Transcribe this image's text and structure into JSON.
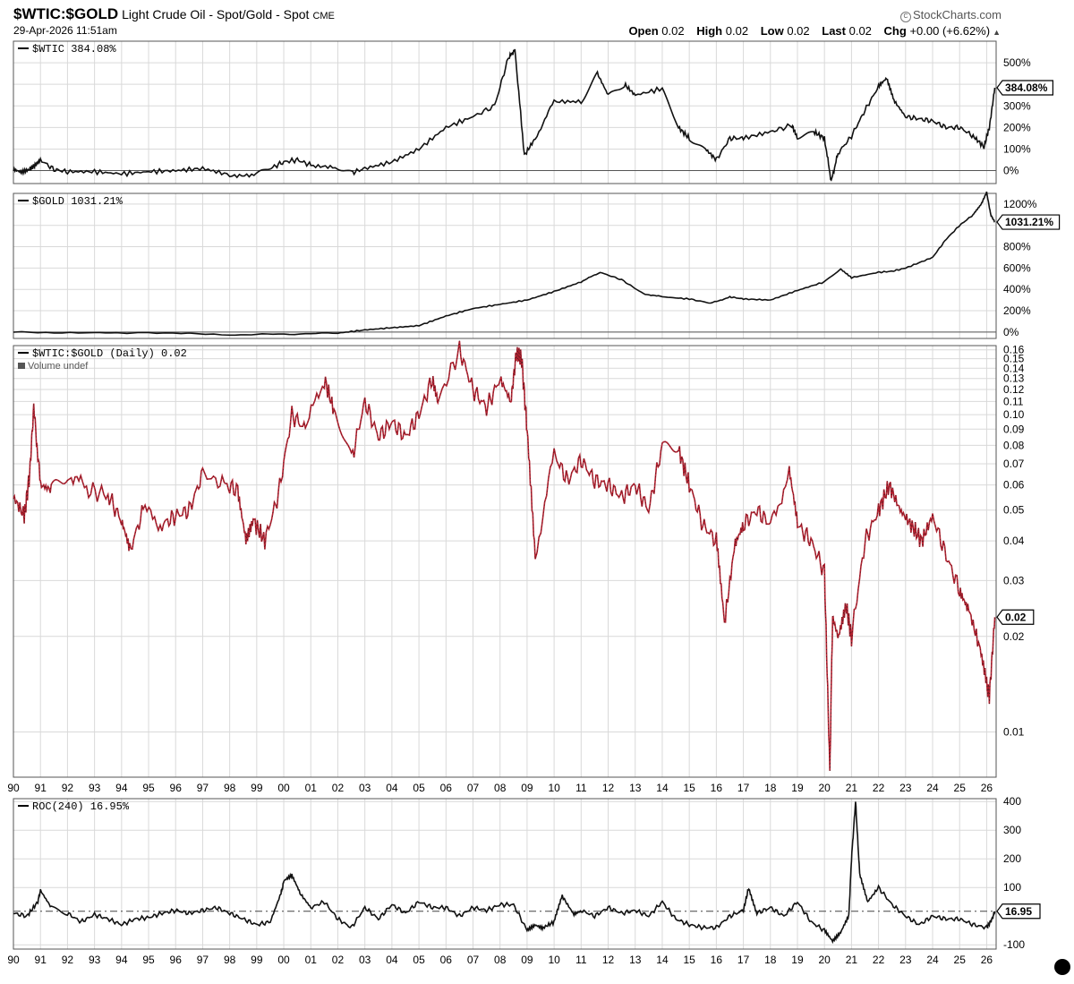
{
  "header": {
    "symbol": "$WTIC:$GOLD",
    "description": "Light Crude Oil - Spot/Gold - Spot",
    "exchange": "CME",
    "datetime": "29-Apr-2026 11:51am",
    "brand": "StockCharts.com",
    "ohlc": {
      "open_label": "Open",
      "open": "0.02",
      "high_label": "High",
      "high": "0.02",
      "low_label": "Low",
      "low": "0.02",
      "last_label": "Last",
      "last": "0.02",
      "chg_label": "Chg",
      "chg": "+0.00 (+6.62%)"
    }
  },
  "colors": {
    "line": "#111111",
    "ratio": "#b3202f",
    "grid": "#d9d9d9",
    "frame": "#555555"
  },
  "chart_data": [
    {
      "type": "line",
      "panel": "wtic",
      "legend": "$WTIC 384.08%",
      "last_label": "384.08%",
      "yticks": [
        "500%",
        "400%",
        "300%",
        "200%",
        "100%",
        "0%"
      ],
      "ylim": [
        -60,
        600
      ],
      "x": [
        1990,
        1990.3,
        1990.6,
        1990.8,
        1991.0,
        1991.5,
        1992,
        1993,
        1994,
        1995,
        1996,
        1997,
        1998,
        1998.9,
        1999.5,
        2000,
        2000.5,
        2001,
        2001.9,
        2002.5,
        2003,
        2004,
        2005,
        2006,
        2007,
        2007.8,
        2008.3,
        2008.55,
        2008.9,
        2009.3,
        2010,
        2011,
        2011.6,
        2012,
        2012.6,
        2013,
        2014,
        2014.6,
        2015,
        2015.6,
        2016.0,
        2016.5,
        2017,
        2018,
        2018.8,
        2019,
        2019.6,
        2020.0,
        2020.25,
        2020.5,
        2021,
        2021.5,
        2022.0,
        2022.3,
        2022.6,
        2023,
        2023.5,
        2024,
        2024.5,
        2025,
        2025.5,
        2025.9,
        2026.1,
        2026.3
      ],
      "values": [
        0,
        -10,
        5,
        25,
        50,
        5,
        -5,
        -5,
        -15,
        -5,
        0,
        10,
        -20,
        -25,
        10,
        40,
        50,
        25,
        10,
        -10,
        10,
        40,
        100,
        200,
        250,
        300,
        520,
        560,
        70,
        150,
        320,
        320,
        450,
        350,
        400,
        350,
        380,
        200,
        150,
        100,
        50,
        150,
        150,
        180,
        210,
        150,
        180,
        150,
        -50,
        80,
        160,
        280,
        390,
        430,
        320,
        250,
        240,
        230,
        200,
        200,
        160,
        110,
        200,
        384
      ]
    },
    {
      "type": "line",
      "panel": "gold",
      "legend": "$GOLD 1031.21%",
      "last_label": "1031.21%",
      "yticks": [
        "1200%",
        "1000%",
        "800%",
        "600%",
        "400%",
        "200%",
        "0%"
      ],
      "ylim": [
        -60,
        1300
      ],
      "x": [
        1990,
        1993,
        1995,
        1998,
        2000,
        2002,
        2003,
        2004,
        2005,
        2006,
        2007,
        2008,
        2009,
        2010,
        2011,
        2011.7,
        2012.5,
        2013.3,
        2014,
        2015,
        2015.8,
        2016.5,
        2017,
        2018,
        2019,
        2020,
        2020.6,
        2021,
        2022,
        2022.5,
        2023,
        2024,
        2024.5,
        2025,
        2025.5,
        2025.8,
        2026.0,
        2026.15,
        2026.3
      ],
      "values": [
        0,
        -10,
        -5,
        -25,
        -20,
        -10,
        20,
        40,
        60,
        150,
        220,
        260,
        300,
        380,
        470,
        560,
        490,
        360,
        330,
        310,
        270,
        330,
        310,
        300,
        390,
        470,
        590,
        510,
        560,
        570,
        600,
        700,
        870,
        1000,
        1100,
        1200,
        1310,
        1100,
        1031
      ]
    },
    {
      "type": "line",
      "panel": "ratio",
      "scale": "log",
      "legend": "$WTIC:$GOLD (Daily) 0.02",
      "volume_note": "Volume undef",
      "last_label": "0.02",
      "yticks": [
        "0.16",
        "0.15",
        "0.14",
        "0.13",
        "0.12",
        "0.11",
        "0.10",
        "0.09",
        "0.08",
        "0.07",
        "0.06",
        "0.05",
        "0.04",
        "0.03",
        "0.02",
        "0.01"
      ],
      "ylim": [
        0.0072,
        0.165
      ],
      "xticks": [
        "90",
        "91",
        "92",
        "93",
        "94",
        "95",
        "96",
        "97",
        "98",
        "99",
        "00",
        "01",
        "02",
        "03",
        "04",
        "05",
        "06",
        "07",
        "08",
        "09",
        "10",
        "11",
        "12",
        "13",
        "14",
        "15",
        "16",
        "17",
        "18",
        "19",
        "20",
        "21",
        "22",
        "23",
        "24",
        "25",
        "26"
      ],
      "x": [
        1990,
        1990.4,
        1990.6,
        1990.75,
        1991.0,
        1991.4,
        1992,
        1992.7,
        1993.5,
        1994.0,
        1994.3,
        1994.8,
        1995.5,
        1996,
        1996.5,
        1997,
        1997.8,
        1998.3,
        1998.6,
        1998.9,
        1999.3,
        1999.8,
        2000.3,
        2000.8,
        2001.5,
        2001.9,
        2002.5,
        2003.0,
        2003.5,
        2004.0,
        2004.5,
        2005.0,
        2005.5,
        2005.7,
        2006.5,
        2007.0,
        2007.5,
        2008.0,
        2008.4,
        2008.6,
        2008.8,
        2009.0,
        2009.3,
        2010.0,
        2010.5,
        2011.0,
        2011.5,
        2012.0,
        2012.5,
        2013.0,
        2013.5,
        2014.0,
        2014.6,
        2015.0,
        2015.5,
        2016.0,
        2016.3,
        2016.7,
        2017.0,
        2017.5,
        2018.0,
        2018.7,
        2019.0,
        2019.5,
        2020.0,
        2020.2,
        2020.3,
        2020.5,
        2020.8,
        2021.0,
        2021.5,
        2022.0,
        2022.4,
        2022.8,
        2023.2,
        2023.6,
        2024.0,
        2024.5,
        2025.0,
        2025.3,
        2025.7,
        2026.0,
        2026.1,
        2026.3
      ],
      "values": [
        0.055,
        0.048,
        0.065,
        0.105,
        0.06,
        0.058,
        0.066,
        0.058,
        0.056,
        0.046,
        0.037,
        0.05,
        0.045,
        0.048,
        0.05,
        0.065,
        0.06,
        0.058,
        0.04,
        0.046,
        0.04,
        0.056,
        0.1,
        0.09,
        0.13,
        0.1,
        0.072,
        0.11,
        0.085,
        0.095,
        0.085,
        0.1,
        0.13,
        0.11,
        0.16,
        0.12,
        0.105,
        0.13,
        0.11,
        0.155,
        0.15,
        0.09,
        0.036,
        0.075,
        0.062,
        0.072,
        0.062,
        0.06,
        0.055,
        0.06,
        0.05,
        0.08,
        0.078,
        0.06,
        0.045,
        0.04,
        0.022,
        0.04,
        0.045,
        0.05,
        0.045,
        0.065,
        0.045,
        0.04,
        0.032,
        0.0075,
        0.023,
        0.02,
        0.025,
        0.02,
        0.04,
        0.05,
        0.06,
        0.05,
        0.045,
        0.04,
        0.048,
        0.036,
        0.028,
        0.025,
        0.019,
        0.014,
        0.013,
        0.023
      ]
    },
    {
      "type": "line",
      "panel": "roc",
      "legend": "ROC(240) 16.95%",
      "last_label": "16.95",
      "yticks": [
        "400",
        "300",
        "200",
        "100",
        "-100"
      ],
      "ylim": [
        -115,
        410
      ],
      "xticks": [
        "90",
        "91",
        "92",
        "93",
        "94",
        "95",
        "96",
        "97",
        "98",
        "99",
        "00",
        "01",
        "02",
        "03",
        "04",
        "05",
        "06",
        "07",
        "08",
        "09",
        "10",
        "11",
        "12",
        "13",
        "14",
        "15",
        "16",
        "17",
        "18",
        "19",
        "20",
        "21",
        "22",
        "23",
        "24",
        "25",
        "26"
      ],
      "x": [
        1990,
        1990.5,
        1990.9,
        1991.0,
        1991.4,
        1992,
        1992.5,
        1993,
        1993.5,
        1994,
        1994.5,
        1995,
        1995.5,
        1996,
        1996.5,
        1997,
        1997.5,
        1998,
        1998.5,
        1999,
        1999.5,
        1999.9,
        2000.0,
        2000.3,
        2000.6,
        2001,
        2001.5,
        2002,
        2002.5,
        2003,
        2003.5,
        2004,
        2004.5,
        2005,
        2005.5,
        2006,
        2006.5,
        2007,
        2007.5,
        2008,
        2008.5,
        2009,
        2009.3,
        2009.6,
        2010.0,
        2010.3,
        2010.7,
        2011.0,
        2011.5,
        2012,
        2012.5,
        2013,
        2013.5,
        2014.0,
        2014.5,
        2015,
        2015.5,
        2016.0,
        2016.5,
        2017.0,
        2017.2,
        2017.5,
        2018,
        2018.5,
        2019,
        2019.5,
        2020.0,
        2020.3,
        2020.6,
        2020.9,
        2021.0,
        2021.15,
        2021.3,
        2021.6,
        2022.0,
        2022.5,
        2023,
        2023.5,
        2024,
        2024.5,
        2025,
        2025.5,
        2026.0,
        2026.2,
        2026.3
      ],
      "values": [
        10,
        0,
        50,
        90,
        30,
        10,
        -20,
        5,
        -10,
        -30,
        -10,
        -5,
        10,
        20,
        10,
        20,
        30,
        10,
        -10,
        -30,
        -20,
        80,
        120,
        140,
        80,
        30,
        50,
        -10,
        -40,
        30,
        -10,
        40,
        10,
        50,
        30,
        30,
        0,
        30,
        20,
        40,
        40,
        -50,
        -30,
        -40,
        -20,
        70,
        10,
        20,
        0,
        30,
        10,
        20,
        0,
        50,
        -10,
        -30,
        -40,
        -40,
        0,
        20,
        100,
        10,
        30,
        0,
        50,
        -20,
        -50,
        -90,
        -60,
        0,
        200,
        400,
        150,
        50,
        100,
        40,
        0,
        -30,
        0,
        -10,
        -10,
        -30,
        -40,
        -10,
        17
      ]
    }
  ]
}
